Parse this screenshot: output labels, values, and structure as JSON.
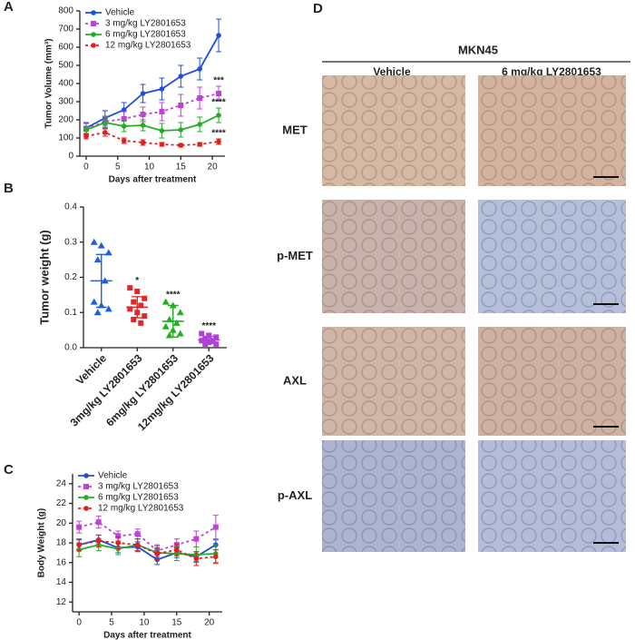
{
  "chart_data": [
    {
      "type": "line",
      "panel": "A",
      "y_label": "Tumor Volume (mm³)",
      "x_label": "Days after treatment",
      "x": [
        0,
        3,
        6,
        9,
        12,
        15,
        18,
        21
      ],
      "xlim": [
        -1,
        22
      ],
      "xticks": [
        0,
        5,
        10,
        15,
        20
      ],
      "ylim": [
        0,
        800
      ],
      "yticks": [
        0,
        100,
        200,
        300,
        400,
        500,
        600,
        700,
        800
      ],
      "series": [
        {
          "name": "Vehicle",
          "color": "#1f4fd8",
          "marker": "circle",
          "dash": false,
          "values": [
            155,
            210,
            255,
            345,
            370,
            440,
            480,
            665
          ],
          "errors": [
            30,
            40,
            40,
            50,
            60,
            60,
            60,
            90
          ]
        },
        {
          "name": "3 mg/kg LY2801653",
          "color": "#c040d8",
          "marker": "square",
          "dash": true,
          "values": [
            150,
            190,
            205,
            230,
            245,
            280,
            320,
            345
          ],
          "errors": [
            30,
            30,
            40,
            40,
            50,
            60,
            60,
            40
          ],
          "annotation": "***"
        },
        {
          "name": "6 mg/kg LY2801653",
          "color": "#22b022",
          "marker": "circle",
          "dash": false,
          "values": [
            145,
            185,
            165,
            170,
            140,
            145,
            175,
            225
          ],
          "errors": [
            20,
            30,
            30,
            30,
            40,
            40,
            40,
            40
          ],
          "annotation": "****"
        },
        {
          "name": "12 mg/kg LY2801653",
          "color": "#e02020",
          "marker": "circle",
          "dash": true,
          "values": [
            110,
            130,
            85,
            75,
            65,
            60,
            65,
            80
          ],
          "errors": [
            15,
            20,
            15,
            15,
            10,
            10,
            10,
            15
          ],
          "annotation": "****"
        }
      ]
    },
    {
      "type": "dotplot",
      "panel": "B",
      "y_label": "Tumor weight (g)",
      "ylim": [
        0,
        0.4
      ],
      "yticks": [
        {
          "value": 0,
          "label": "0.0"
        },
        0.1,
        0.2,
        0.3,
        0.4
      ],
      "groups": [
        {
          "category": "Vehicle",
          "color": "#1f5fd8",
          "marker": "triangle",
          "values": [
            0.3,
            0.29,
            0.27,
            0.25,
            0.19,
            0.13,
            0.12,
            0.11,
            0.1
          ],
          "mean": 0.19,
          "sd": 0.075
        },
        {
          "category": "3mg/kg LY2801653",
          "color": "#e02828",
          "marker": "square",
          "values": [
            0.17,
            0.16,
            0.14,
            0.13,
            0.12,
            0.11,
            0.1,
            0.09,
            0.08,
            0.07
          ],
          "mean": 0.115,
          "sd": 0.03,
          "annotation": "*"
        },
        {
          "category": "6mg/kg LY2801653",
          "color": "#22b022",
          "marker": "triangle",
          "values": [
            0.13,
            0.12,
            0.1,
            0.08,
            0.07,
            0.06,
            0.05,
            0.04,
            0.035
          ],
          "mean": 0.075,
          "sd": 0.045,
          "annotation": "****"
        },
        {
          "category": "12mg/kg LY2801653",
          "color": "#b040d8",
          "marker": "square",
          "values": [
            0.04,
            0.035,
            0.03,
            0.025,
            0.02,
            0.02,
            0.015,
            0.01,
            0.01
          ],
          "mean": 0.022,
          "sd": 0.01,
          "annotation": "****"
        }
      ]
    },
    {
      "type": "line",
      "panel": "C",
      "y_label": "Body Weight (g)",
      "x_label": "Days after treatment",
      "x": [
        0,
        3,
        6,
        9,
        12,
        15,
        18,
        21
      ],
      "xlim": [
        -1,
        22
      ],
      "xticks": [
        0,
        5,
        10,
        15,
        20
      ],
      "ylim": [
        11,
        25
      ],
      "yticks": [
        12,
        14,
        16,
        18,
        20,
        22,
        24
      ],
      "series": [
        {
          "name": "Vehicle",
          "color": "#1f4fd8",
          "marker": "circle",
          "dash": false,
          "values": [
            17.8,
            18.3,
            17.5,
            17.6,
            16.3,
            17.0,
            16.6,
            17.8
          ],
          "errors": [
            0.5,
            0.5,
            0.5,
            0.5,
            0.5,
            0.5,
            0.5,
            0.5
          ]
        },
        {
          "name": "3 mg/kg LY2801653",
          "color": "#c040d8",
          "marker": "square",
          "dash": true,
          "values": [
            19.6,
            20.1,
            18.7,
            18.9,
            17.2,
            17.8,
            18.4,
            19.6
          ],
          "errors": [
            0.6,
            0.6,
            0.5,
            0.5,
            0.6,
            0.6,
            0.8,
            1.2
          ]
        },
        {
          "name": "6 mg/kg LY2801653",
          "color": "#22b022",
          "marker": "circle",
          "dash": false,
          "values": [
            17.3,
            17.8,
            17.4,
            17.8,
            17.0,
            16.9,
            16.8,
            16.9
          ],
          "errors": [
            0.7,
            0.6,
            0.6,
            0.6,
            0.7,
            0.7,
            0.8,
            0.9
          ]
        },
        {
          "name": "12 mg/kg LY2801653",
          "color": "#e02020",
          "marker": "circle",
          "dash": true,
          "values": [
            17.8,
            18.2,
            18.0,
            17.8,
            16.9,
            17.3,
            16.4,
            16.6
          ],
          "errors": [
            0.6,
            0.6,
            0.6,
            0.6,
            0.6,
            0.6,
            0.7,
            0.7
          ]
        }
      ]
    }
  ],
  "panel_d": {
    "panel": "D",
    "title": "MKN45",
    "columns": [
      "Vehicle",
      "6 mg/kg LY2801653"
    ],
    "rows": [
      "MET",
      "p-MET",
      "AXL",
      "p-AXL"
    ]
  }
}
